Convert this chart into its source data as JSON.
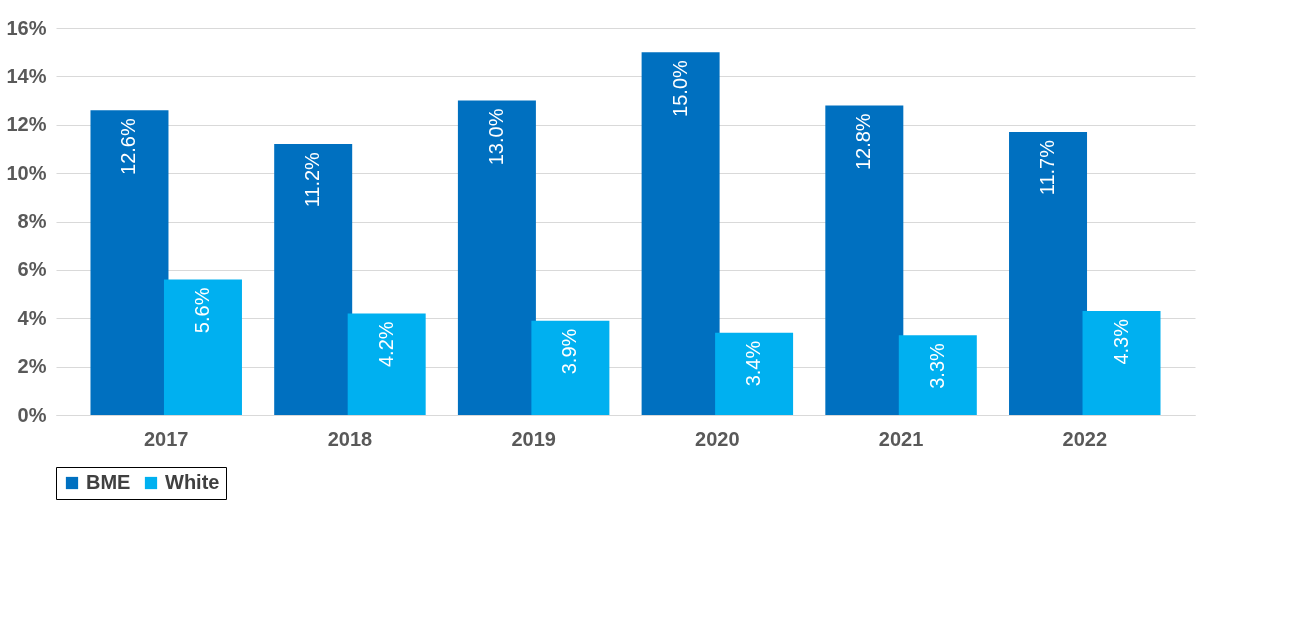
{
  "chart_data": {
    "type": "bar",
    "categories": [
      "2017",
      "2018",
      "2019",
      "2020",
      "2021",
      "2022"
    ],
    "series": [
      {
        "name": "BME",
        "color": "#0070c0",
        "values": [
          12.6,
          11.2,
          13.0,
          15.0,
          12.8,
          11.7
        ],
        "value_labels": [
          "12.6%",
          "11.2%",
          "13.0%",
          "15.0%",
          "12.8%",
          "11.7%"
        ]
      },
      {
        "name": "White",
        "color": "#00b0f0",
        "values": [
          5.6,
          4.2,
          3.9,
          3.4,
          3.3,
          4.3
        ],
        "value_labels": [
          "5.6%",
          "4.2%",
          "3.9%",
          "3.4%",
          "3.3%",
          "4.3%"
        ]
      }
    ],
    "ylim": [
      0,
      16
    ],
    "yticks": [
      {
        "value": 0,
        "label": "0%"
      },
      {
        "value": 2,
        "label": "2%"
      },
      {
        "value": 4,
        "label": "4%"
      },
      {
        "value": 6,
        "label": "6%"
      },
      {
        "value": 8,
        "label": "8%"
      },
      {
        "value": 10,
        "label": "10%"
      },
      {
        "value": 12,
        "label": "12%"
      },
      {
        "value": 14,
        "label": "14%"
      },
      {
        "value": 16,
        "label": "16%"
      }
    ],
    "grid": "y",
    "legend": "bottom"
  }
}
